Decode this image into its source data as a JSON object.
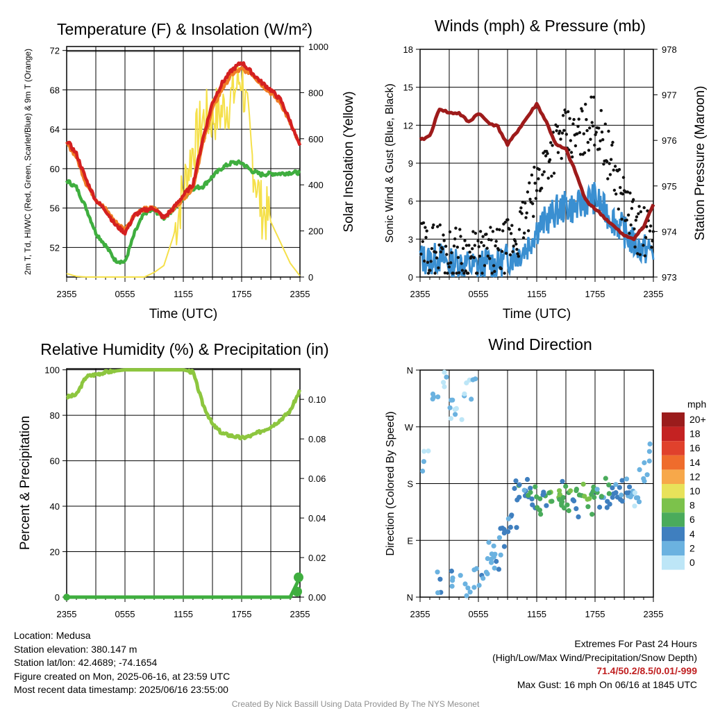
{
  "footer": {
    "location": "Location: Medusa",
    "elevation": "Station elevation: 380.147 m",
    "latlon": "Station lat/lon: 42.4689; -74.1654",
    "created": "Figure created on Mon, 2025-06-16, at 23:59 UTC",
    "recent": "Most recent data timestamp: 2025/06/16 23:55:00",
    "extremes_title": "Extremes For Past 24 Hours",
    "extremes_legend": "(High/Low/Max Wind/Precipitation/Snow Depth)",
    "extremes_values": "71.4/50.2/8.5/0.01/-999",
    "max_gust": "Max Gust: 16 mph On 06/16 at 1845 UTC",
    "credit": "Created By Nick Bassill Using Data Provided By The NYS Mesonet"
  },
  "chart_data": [
    {
      "type": "line",
      "title": "Temperature (F) & Insolation (W/m²)",
      "xlabel": "Time (UTC)",
      "ylabel": "2m T, Td, HI/WC (Red, Green, Scarlet/Blue) & 9m T (Orange)",
      "ylabel_right": "Solar Insolation (Yellow)",
      "x_ticks": [
        "2355",
        "0555",
        "1155",
        "1755",
        "2355"
      ],
      "y_ticks": [
        52,
        56,
        60,
        64,
        68,
        72
      ],
      "y2_ticks": [
        0,
        200,
        400,
        600,
        800,
        1000
      ],
      "ylim": [
        49,
        72.4
      ],
      "y2lim": [
        0,
        1000
      ],
      "grid": true,
      "colors": {
        "red": "#d42020",
        "orange": "#f07d25",
        "green": "#3fae3f",
        "scarlet": "#b01818",
        "yellow": "#f5e04a"
      },
      "x_hours": [
        0,
        1,
        2,
        3,
        4,
        5,
        6,
        7,
        8,
        9,
        10,
        11,
        12,
        13,
        14,
        15,
        16,
        17,
        18,
        19,
        20,
        21,
        22,
        23,
        24
      ],
      "series": [
        {
          "name": "Red",
          "axis": "left",
          "color": "red",
          "values": [
            62.9,
            61.5,
            58.9,
            56.8,
            55.8,
            54.3,
            53.5,
            55.3,
            55.8,
            56.0,
            55.0,
            56.0,
            57.3,
            58.4,
            63.0,
            66.7,
            68.7,
            70.0,
            70.8,
            69.8,
            68.8,
            68.0,
            67.0,
            64.8,
            62.2
          ]
        },
        {
          "name": "Orange",
          "axis": "left",
          "color": "orange",
          "values": [
            62.6,
            61.2,
            58.5,
            56.9,
            55.9,
            54.6,
            53.8,
            55.4,
            55.9,
            56.0,
            55.1,
            55.9,
            57.0,
            58.1,
            62.5,
            66.1,
            68.1,
            69.6,
            70.1,
            69.7,
            68.6,
            67.7,
            66.7,
            64.6,
            62.3
          ]
        },
        {
          "name": "Green",
          "axis": "left",
          "color": "green",
          "values": [
            58.8,
            58.1,
            56.0,
            53.5,
            52.2,
            50.7,
            50.5,
            53.5,
            55.5,
            55.8,
            55.0,
            55.9,
            57.0,
            58.0,
            58.2,
            59.2,
            60.1,
            60.6,
            60.6,
            59.8,
            59.4,
            59.5,
            59.5,
            59.6,
            59.6
          ]
        },
        {
          "name": "Yellow",
          "axis": "right",
          "color": "yellow",
          "values": [
            15,
            3,
            0,
            0,
            0,
            0,
            0,
            0,
            0,
            20,
            50,
            180,
            380,
            560,
            680,
            700,
            720,
            780,
            880,
            540,
            300,
            240,
            150,
            60,
            5
          ]
        }
      ]
    },
    {
      "type": "line",
      "title": "Winds (mph) & Pressure (mb)",
      "xlabel": "Time (UTC)",
      "ylabel": "Sonic Wind & Gust (Blue, Black)",
      "ylabel_right": "Station Pressure (Maroon)",
      "x_ticks": [
        "2355",
        "0555",
        "1155",
        "1755",
        "2355"
      ],
      "y_ticks": [
        0,
        3,
        6,
        9,
        12,
        15,
        18
      ],
      "y2_ticks": [
        973,
        974,
        975,
        976,
        977,
        978
      ],
      "ylim": [
        0,
        18
      ],
      "y2lim": [
        973,
        978
      ],
      "grid": true,
      "colors": {
        "blue": "#3a8fd1",
        "black": "#111111",
        "maroon": "#9e1b1b"
      },
      "x_hours": [
        0,
        1,
        2,
        3,
        4,
        5,
        6,
        7,
        8,
        9,
        10,
        11,
        12,
        13,
        14,
        15,
        16,
        17,
        18,
        19,
        20,
        21,
        22,
        23,
        24
      ],
      "series": [
        {
          "name": "Blue",
          "axis": "left",
          "color": "blue",
          "values": [
            1.5,
            1.3,
            1.6,
            1.0,
            1.2,
            0.9,
            0.8,
            1.2,
            1.0,
            1.5,
            1.8,
            2.4,
            3.8,
            4.5,
            5.2,
            5.6,
            5.4,
            6.0,
            6.3,
            5.2,
            4.5,
            3.6,
            2.6,
            2.2,
            2.1
          ]
        },
        {
          "name": "Black",
          "axis": "left",
          "color": "black",
          "values": [
            2.4,
            2.1,
            2.6,
            1.8,
            2.0,
            1.7,
            1.6,
            1.9,
            1.8,
            2.6,
            3.2,
            5.0,
            7.2,
            9.5,
            10.5,
            11.2,
            10.8,
            11.8,
            12.5,
            10.5,
            8.2,
            6.0,
            4.2,
            3.5,
            3.4
          ]
        },
        {
          "name": "Maroon",
          "axis": "right",
          "color": "maroon",
          "values": [
            976.0,
            976.1,
            976.7,
            976.6,
            976.6,
            976.4,
            976.6,
            976.4,
            976.3,
            975.9,
            976.2,
            976.5,
            976.8,
            976.4,
            975.9,
            975.8,
            975.3,
            974.7,
            974.5,
            974.3,
            974.1,
            973.9,
            973.85,
            974.1,
            974.6
          ]
        }
      ]
    },
    {
      "type": "line",
      "title": "Relative Humidity (%) & Precipitation (in)",
      "xlabel": "",
      "ylabel": "Percent & Precipitation",
      "x_ticks": [
        "2355",
        "0555",
        "1155",
        "1755",
        "2355"
      ],
      "y_ticks": [
        0,
        20,
        40,
        60,
        80,
        100
      ],
      "y2_ticks": [
        "0.00",
        "0.02",
        "0.04",
        "0.06",
        "0.08",
        "0.10"
      ],
      "ylim": [
        0,
        100.5
      ],
      "y2lim": [
        0,
        0.1155
      ],
      "grid": true,
      "colors": {
        "humidity": "#8dc63f",
        "precip": "#3fae3f"
      },
      "x_hours": [
        0,
        1,
        2,
        3,
        4,
        5,
        6,
        7,
        8,
        9,
        10,
        11,
        12,
        13,
        14,
        15,
        16,
        17,
        18,
        19,
        20,
        21,
        22,
        23,
        24
      ],
      "series": [
        {
          "name": "Relative Humidity",
          "axis": "left",
          "color": "humidity",
          "values": [
            88,
            89,
            97,
            98,
            99,
            99.5,
            100,
            100,
            100,
            100,
            100,
            100,
            100,
            99,
            85,
            76,
            72,
            71,
            70,
            71,
            73,
            75,
            78,
            82,
            91
          ]
        },
        {
          "name": "Precipitation",
          "axis": "right",
          "color": "precip",
          "values": [
            0,
            0,
            0,
            0,
            0,
            0,
            0,
            0,
            0,
            0,
            0,
            0,
            0,
            0,
            0,
            0,
            0,
            0,
            0,
            0,
            0,
            0,
            0,
            0,
            0.01
          ]
        }
      ]
    },
    {
      "type": "scatter",
      "title": "Wind Direction",
      "ylabel": "Direction (Colored By Speed)",
      "x_ticks": [
        "2355",
        "0555",
        "1155",
        "1755",
        "2355"
      ],
      "y_ticks": [
        "N",
        "E",
        "S",
        "W",
        "N"
      ],
      "ylim": [
        0,
        360
      ],
      "grid": true,
      "legend": {
        "title": "mph",
        "position": "right",
        "labels": [
          "20+",
          "18",
          "16",
          "14",
          "12",
          "10",
          "8",
          "6",
          "4",
          "2",
          "0"
        ],
        "colors": [
          "#9b1c1c",
          "#c42222",
          "#e0412c",
          "#ef6c2c",
          "#f7a84a",
          "#e8e25a",
          "#7cc24b",
          "#4aab5b",
          "#3f7fbf",
          "#6bb2e0",
          "#bde6f7"
        ]
      },
      "x_hours": [
        0.5,
        1.5,
        2.2,
        2.6,
        3.0,
        3.5,
        4.0,
        4.5,
        5.0,
        5.5,
        6.0,
        6.5,
        7.0,
        7.5,
        8.0,
        8.5,
        9.0,
        9.5,
        10.0,
        10.5,
        11.0,
        11.5,
        12.0,
        12.5,
        13.0,
        13.5,
        14.0,
        14.5,
        15.0,
        15.5,
        16.0,
        16.5,
        17.0,
        17.5,
        18.0,
        18.5,
        19.0,
        19.5,
        20.0,
        20.5,
        21.0,
        21.5,
        22.0,
        22.5,
        23.0,
        23.5
      ],
      "directions": [
        215,
        330,
        20,
        345,
        300,
        25,
        280,
        15,
        330,
        350,
        30,
        35,
        55,
        70,
        60,
        90,
        110,
        130,
        165,
        175,
        170,
        155,
        160,
        150,
        165,
        170,
        150,
        165,
        160,
        155,
        145,
        175,
        160,
        150,
        165,
        155,
        170,
        145,
        160,
        165,
        170,
        155,
        175,
        160,
        200,
        230
      ],
      "speeds": [
        1.5,
        2.0,
        3.0,
        1.0,
        1.5,
        2.5,
        1.0,
        2.0,
        1.5,
        1.0,
        2.0,
        3.0,
        1.5,
        2.0,
        3.0,
        3.5,
        4.0,
        3.5,
        4.5,
        3.0,
        4.0,
        5.0,
        5.5,
        6.0,
        4.0,
        6.5,
        7.5,
        5.0,
        6.5,
        7.0,
        4.0,
        6.0,
        7.5,
        5.5,
        6.0,
        3.5,
        4.5,
        5.0,
        3.0,
        4.0,
        2.5,
        3.5,
        2.0,
        1.5,
        2.0,
        2.5
      ]
    }
  ]
}
